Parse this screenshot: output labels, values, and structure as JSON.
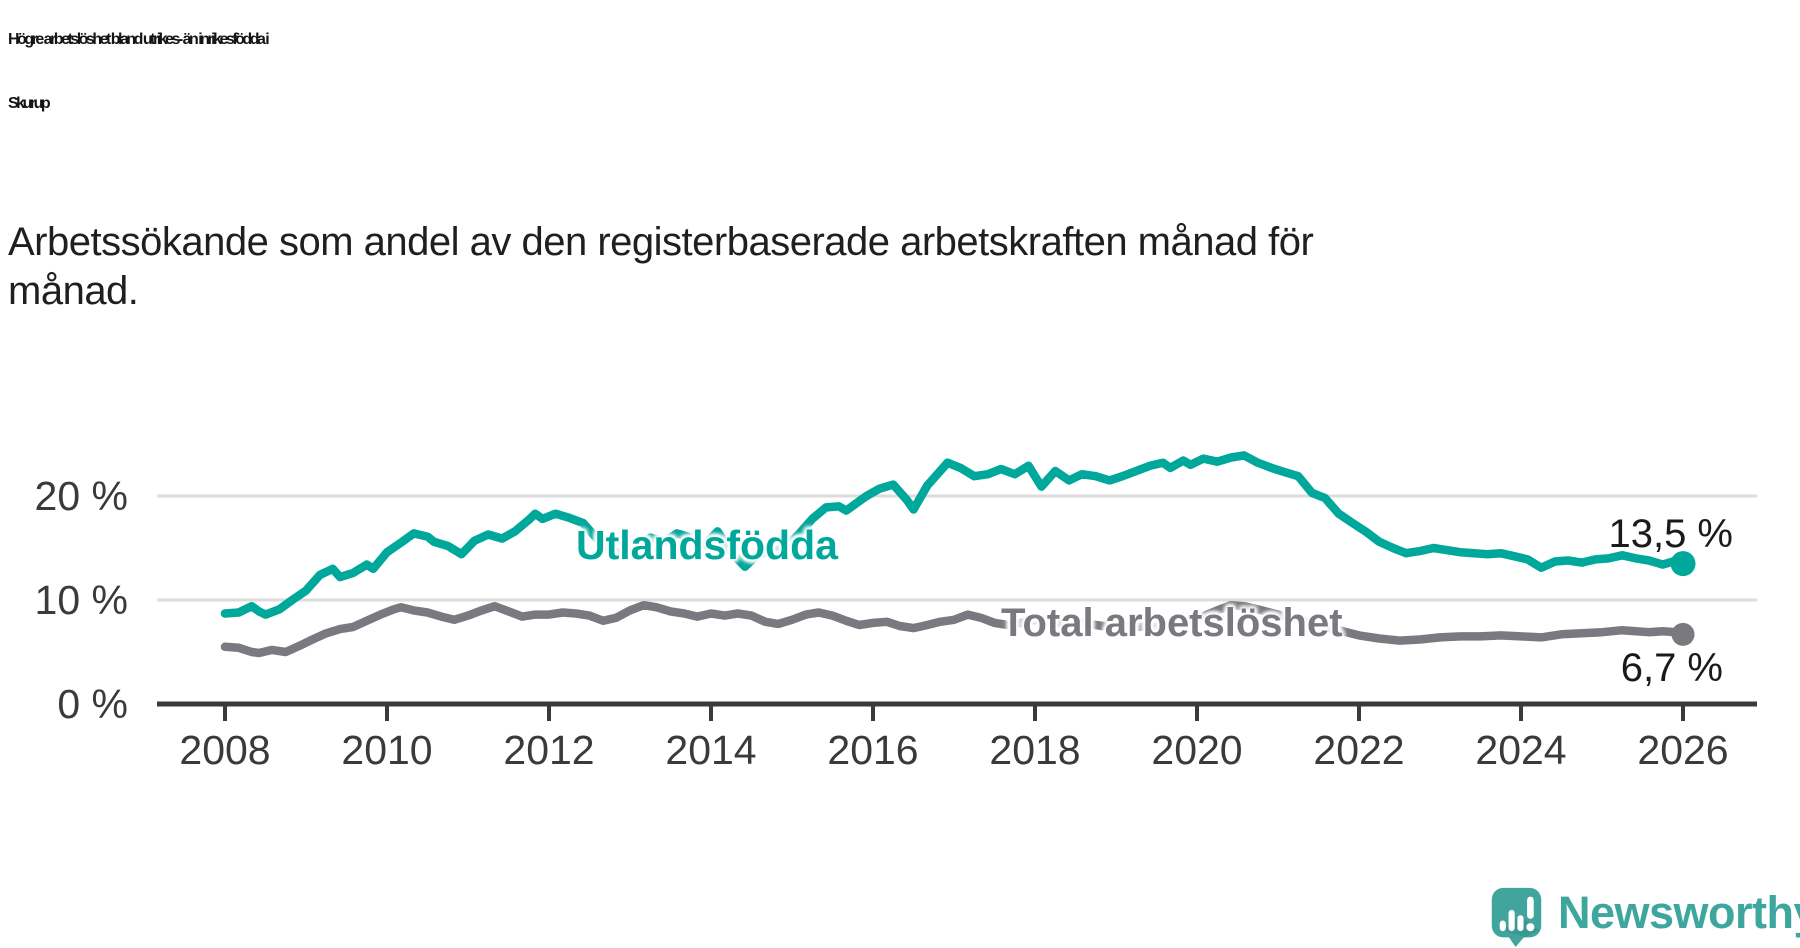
{
  "title": {
    "line1": "Högre arbetslöshet bland utrikes- än inrikesfödda i",
    "line2": "Skurup"
  },
  "subtitle": {
    "line1": "Arbetssökande som andel av den registerbaserade arbetskraften månad för",
    "line2": "månad."
  },
  "branding": {
    "name": "Newsworthy",
    "icon": "newsworthy-speech-bubble-chart-icon",
    "text_color": "#3da69e",
    "icon_color": "#42a59d",
    "icon_shadow_color": "#37978e"
  },
  "colors": {
    "accent_teal": "#00a79b",
    "neutral_gray": "#7b7980",
    "gridline": "#dcdcdc",
    "axis": "#3a3a3a",
    "tick_text": "#3a3a3a"
  },
  "chart_data": {
    "type": "line",
    "title": "Högre arbetslöshet bland utrikes- än inrikesfödda i Skurup",
    "subtitle": "Arbetssökande som andel av den registerbaserade arbetskraften månad för månad.",
    "grid": "horizontal",
    "legend": "inline-labels",
    "x_axis": {
      "min": 2008,
      "max": 2026.9,
      "ticks": [
        2008,
        2010,
        2012,
        2014,
        2016,
        2018,
        2020,
        2022,
        2024,
        2026
      ],
      "tick_labels": [
        "2008",
        "2010",
        "2012",
        "2014",
        "2016",
        "2018",
        "2020",
        "2022",
        "2024",
        "2026"
      ]
    },
    "y_axis": {
      "min": 0,
      "max": 25,
      "ticks": [
        0,
        10,
        20
      ],
      "tick_labels": [
        "0 %",
        "10 %",
        "20 %"
      ],
      "unit": "%"
    },
    "series": [
      {
        "id": "utlandsfodda",
        "name": "Utlandsfödda",
        "color": "#00a79b",
        "end_value": 13.5,
        "end_label": "13,5 %",
        "points": [
          [
            2008.0,
            8.7
          ],
          [
            2008.17,
            8.8
          ],
          [
            2008.33,
            9.4
          ],
          [
            2008.42,
            8.9
          ],
          [
            2008.5,
            8.6
          ],
          [
            2008.67,
            9.1
          ],
          [
            2008.83,
            10.0
          ],
          [
            2009.0,
            10.9
          ],
          [
            2009.17,
            12.4
          ],
          [
            2009.33,
            13.0
          ],
          [
            2009.42,
            12.2
          ],
          [
            2009.58,
            12.6
          ],
          [
            2009.75,
            13.4
          ],
          [
            2009.83,
            13.0
          ],
          [
            2010.0,
            14.6
          ],
          [
            2010.17,
            15.5
          ],
          [
            2010.33,
            16.4
          ],
          [
            2010.5,
            16.1
          ],
          [
            2010.58,
            15.6
          ],
          [
            2010.75,
            15.2
          ],
          [
            2010.92,
            14.4
          ],
          [
            2011.08,
            15.7
          ],
          [
            2011.25,
            16.3
          ],
          [
            2011.42,
            15.9
          ],
          [
            2011.58,
            16.6
          ],
          [
            2011.75,
            17.7
          ],
          [
            2011.83,
            18.3
          ],
          [
            2011.92,
            17.8
          ],
          [
            2012.08,
            18.3
          ],
          [
            2012.25,
            17.9
          ],
          [
            2012.42,
            17.4
          ],
          [
            2012.58,
            16.0
          ],
          [
            2012.75,
            14.9
          ],
          [
            2012.92,
            14.3
          ],
          [
            2013.08,
            14.9
          ],
          [
            2013.25,
            16.0
          ],
          [
            2013.42,
            15.6
          ],
          [
            2013.58,
            16.4
          ],
          [
            2013.75,
            16.0
          ],
          [
            2013.92,
            15.3
          ],
          [
            2014.08,
            16.6
          ],
          [
            2014.25,
            14.6
          ],
          [
            2014.42,
            13.2
          ],
          [
            2014.58,
            14.4
          ],
          [
            2014.75,
            14.7
          ],
          [
            2014.92,
            15.1
          ],
          [
            2015.08,
            16.3
          ],
          [
            2015.25,
            17.8
          ],
          [
            2015.42,
            18.9
          ],
          [
            2015.58,
            19.0
          ],
          [
            2015.67,
            18.6
          ],
          [
            2015.83,
            19.5
          ],
          [
            2015.92,
            20.0
          ],
          [
            2016.08,
            20.7
          ],
          [
            2016.25,
            21.1
          ],
          [
            2016.42,
            19.6
          ],
          [
            2016.5,
            18.7
          ],
          [
            2016.67,
            21.0
          ],
          [
            2016.83,
            22.4
          ],
          [
            2016.92,
            23.2
          ],
          [
            2017.08,
            22.7
          ],
          [
            2017.25,
            21.9
          ],
          [
            2017.42,
            22.1
          ],
          [
            2017.58,
            22.6
          ],
          [
            2017.75,
            22.1
          ],
          [
            2017.92,
            22.9
          ],
          [
            2018.0,
            21.9
          ],
          [
            2018.08,
            20.9
          ],
          [
            2018.25,
            22.4
          ],
          [
            2018.42,
            21.5
          ],
          [
            2018.58,
            22.1
          ],
          [
            2018.75,
            21.9
          ],
          [
            2018.92,
            21.5
          ],
          [
            2019.08,
            21.9
          ],
          [
            2019.25,
            22.4
          ],
          [
            2019.42,
            22.9
          ],
          [
            2019.58,
            23.2
          ],
          [
            2019.67,
            22.7
          ],
          [
            2019.83,
            23.4
          ],
          [
            2019.92,
            23.0
          ],
          [
            2020.08,
            23.6
          ],
          [
            2020.25,
            23.3
          ],
          [
            2020.42,
            23.7
          ],
          [
            2020.58,
            23.9
          ],
          [
            2020.75,
            23.2
          ],
          [
            2020.92,
            22.7
          ],
          [
            2021.08,
            22.3
          ],
          [
            2021.25,
            21.9
          ],
          [
            2021.42,
            20.3
          ],
          [
            2021.58,
            19.8
          ],
          [
            2021.75,
            18.3
          ],
          [
            2021.92,
            17.4
          ],
          [
            2022.08,
            16.6
          ],
          [
            2022.25,
            15.6
          ],
          [
            2022.42,
            15.0
          ],
          [
            2022.58,
            14.5
          ],
          [
            2022.75,
            14.7
          ],
          [
            2022.92,
            15.0
          ],
          [
            2023.08,
            14.8
          ],
          [
            2023.25,
            14.6
          ],
          [
            2023.42,
            14.5
          ],
          [
            2023.58,
            14.4
          ],
          [
            2023.75,
            14.5
          ],
          [
            2023.92,
            14.2
          ],
          [
            2024.08,
            13.9
          ],
          [
            2024.25,
            13.1
          ],
          [
            2024.42,
            13.7
          ],
          [
            2024.58,
            13.8
          ],
          [
            2024.75,
            13.6
          ],
          [
            2024.92,
            13.9
          ],
          [
            2025.08,
            14.0
          ],
          [
            2025.25,
            14.3
          ],
          [
            2025.42,
            14.0
          ],
          [
            2025.58,
            13.8
          ],
          [
            2025.75,
            13.4
          ],
          [
            2025.92,
            13.8
          ],
          [
            2026.0,
            13.5
          ]
        ]
      },
      {
        "id": "total-arbetsloshet",
        "name": "Total arbetslöshet",
        "color": "#7b7980",
        "end_value": 6.7,
        "end_label": "6,7 %",
        "points": [
          [
            2008.0,
            5.5
          ],
          [
            2008.17,
            5.4
          ],
          [
            2008.33,
            5.0
          ],
          [
            2008.42,
            4.9
          ],
          [
            2008.58,
            5.2
          ],
          [
            2008.75,
            5.0
          ],
          [
            2008.92,
            5.6
          ],
          [
            2009.08,
            6.2
          ],
          [
            2009.25,
            6.8
          ],
          [
            2009.42,
            7.2
          ],
          [
            2009.58,
            7.4
          ],
          [
            2009.75,
            8.0
          ],
          [
            2009.92,
            8.6
          ],
          [
            2010.08,
            9.1
          ],
          [
            2010.17,
            9.3
          ],
          [
            2010.33,
            9.0
          ],
          [
            2010.5,
            8.8
          ],
          [
            2010.67,
            8.4
          ],
          [
            2010.83,
            8.1
          ],
          [
            2011.0,
            8.5
          ],
          [
            2011.17,
            9.0
          ],
          [
            2011.33,
            9.4
          ],
          [
            2011.5,
            8.9
          ],
          [
            2011.67,
            8.4
          ],
          [
            2011.83,
            8.6
          ],
          [
            2012.0,
            8.6
          ],
          [
            2012.17,
            8.8
          ],
          [
            2012.33,
            8.7
          ],
          [
            2012.5,
            8.5
          ],
          [
            2012.67,
            8.0
          ],
          [
            2012.83,
            8.3
          ],
          [
            2013.0,
            9.0
          ],
          [
            2013.17,
            9.5
          ],
          [
            2013.33,
            9.3
          ],
          [
            2013.5,
            8.9
          ],
          [
            2013.67,
            8.7
          ],
          [
            2013.83,
            8.4
          ],
          [
            2014.0,
            8.7
          ],
          [
            2014.17,
            8.5
          ],
          [
            2014.33,
            8.7
          ],
          [
            2014.5,
            8.5
          ],
          [
            2014.67,
            7.9
          ],
          [
            2014.83,
            7.7
          ],
          [
            2015.0,
            8.1
          ],
          [
            2015.17,
            8.6
          ],
          [
            2015.33,
            8.8
          ],
          [
            2015.5,
            8.5
          ],
          [
            2015.67,
            8.0
          ],
          [
            2015.83,
            7.6
          ],
          [
            2016.0,
            7.8
          ],
          [
            2016.17,
            7.9
          ],
          [
            2016.33,
            7.5
          ],
          [
            2016.5,
            7.3
          ],
          [
            2016.67,
            7.6
          ],
          [
            2016.83,
            7.9
          ],
          [
            2017.0,
            8.1
          ],
          [
            2017.17,
            8.6
          ],
          [
            2017.33,
            8.3
          ],
          [
            2017.5,
            7.8
          ],
          [
            2017.67,
            7.6
          ],
          [
            2017.83,
            7.8
          ],
          [
            2018.0,
            8.1
          ],
          [
            2018.17,
            8.0
          ],
          [
            2018.33,
            7.7
          ],
          [
            2018.5,
            7.9
          ],
          [
            2018.67,
            7.7
          ],
          [
            2018.83,
            7.5
          ],
          [
            2019.0,
            7.6
          ],
          [
            2019.25,
            7.4
          ],
          [
            2019.5,
            7.5
          ],
          [
            2019.75,
            7.8
          ],
          [
            2020.0,
            8.2
          ],
          [
            2020.25,
            9.0
          ],
          [
            2020.42,
            9.5
          ],
          [
            2020.58,
            9.4
          ],
          [
            2020.75,
            9.1
          ],
          [
            2021.0,
            8.6
          ],
          [
            2021.25,
            8.1
          ],
          [
            2021.5,
            7.6
          ],
          [
            2021.75,
            7.1
          ],
          [
            2022.0,
            6.6
          ],
          [
            2022.25,
            6.3
          ],
          [
            2022.5,
            6.1
          ],
          [
            2022.75,
            6.2
          ],
          [
            2023.0,
            6.4
          ],
          [
            2023.25,
            6.5
          ],
          [
            2023.5,
            6.5
          ],
          [
            2023.75,
            6.6
          ],
          [
            2024.0,
            6.5
          ],
          [
            2024.25,
            6.4
          ],
          [
            2024.5,
            6.7
          ],
          [
            2024.75,
            6.8
          ],
          [
            2025.0,
            6.9
          ],
          [
            2025.25,
            7.1
          ],
          [
            2025.42,
            7.0
          ],
          [
            2025.58,
            6.9
          ],
          [
            2025.75,
            7.0
          ],
          [
            2025.92,
            6.9
          ],
          [
            2026.0,
            6.7
          ]
        ]
      }
    ]
  }
}
